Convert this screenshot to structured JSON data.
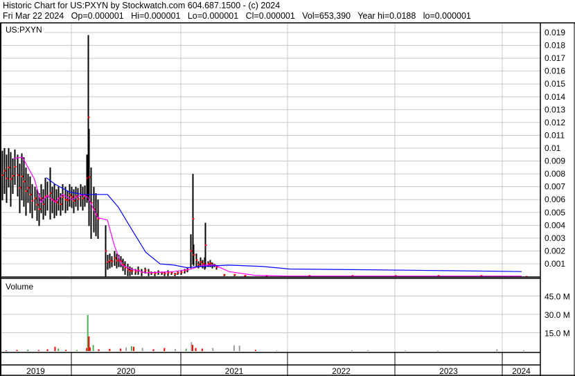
{
  "header": {
    "title": "Historic Chart for US:PXYN by Stockwatch.com 604.687.1500 - (c) 2024",
    "quote_line": "Fri Mar 22 2024   Op=0.000001   Hi=0.000001   Lo=0.000001   Cl=0.000001   Vol=653,390   Year hi=0.0188   lo=0.000001"
  },
  "chart_data": [
    {
      "type": "bar",
      "subtype": "ohlc",
      "title": "US:PXYN",
      "xlabel": "",
      "ylabel": "",
      "x_unit": "year",
      "x_ticks": [
        "2019",
        "2020",
        "2021",
        "2022",
        "2023",
        "2024"
      ],
      "y_ticks": [
        "0.001",
        "0.002",
        "0.003",
        "0.004",
        "0.005",
        "0.006",
        "0.007",
        "0.008",
        "0.009",
        "0.01",
        "0.011",
        "0.012",
        "0.013",
        "0.014",
        "0.015",
        "0.016",
        "0.017",
        "0.018",
        "0.019"
      ],
      "ylim": [
        0,
        0.0195
      ],
      "grid": true,
      "colors": {
        "bars": "#000000",
        "down_close": "#ff0000",
        "ma_short": "#ff00ff",
        "ma_long": "#0000ff",
        "grid": "#c8c8c8"
      },
      "bars_year_high_low": [
        [
          2019.34,
          0.0075,
          0.0055
        ],
        [
          2019.36,
          0.0098,
          0.006
        ],
        [
          2019.38,
          0.01,
          0.0065
        ],
        [
          2019.4,
          0.0095,
          0.0058
        ],
        [
          2019.42,
          0.01,
          0.007
        ],
        [
          2019.44,
          0.0097,
          0.0055
        ],
        [
          2019.46,
          0.0092,
          0.0065
        ],
        [
          2019.48,
          0.0099,
          0.0072
        ],
        [
          2019.5,
          0.0095,
          0.0063
        ],
        [
          2019.52,
          0.0088,
          0.005
        ],
        [
          2019.54,
          0.0096,
          0.006
        ],
        [
          2019.56,
          0.0093,
          0.0055
        ],
        [
          2019.58,
          0.0085,
          0.0048
        ],
        [
          2019.6,
          0.008,
          0.0058
        ],
        [
          2019.62,
          0.0078,
          0.005
        ],
        [
          2019.64,
          0.0072,
          0.0046
        ],
        [
          2019.66,
          0.007,
          0.0052
        ],
        [
          2019.68,
          0.0068,
          0.0044
        ],
        [
          2019.7,
          0.0065,
          0.004
        ],
        [
          2019.72,
          0.0072,
          0.005
        ],
        [
          2019.74,
          0.0068,
          0.0045
        ],
        [
          2019.76,
          0.0077,
          0.0048
        ],
        [
          2019.78,
          0.0074,
          0.0052
        ],
        [
          2019.8,
          0.0085,
          0.0045
        ],
        [
          2019.82,
          0.007,
          0.005
        ],
        [
          2019.84,
          0.0072,
          0.0046
        ],
        [
          2019.86,
          0.0068,
          0.0048
        ],
        [
          2019.88,
          0.007,
          0.0052
        ],
        [
          2019.9,
          0.0065,
          0.0048
        ],
        [
          2019.92,
          0.0072,
          0.0052
        ],
        [
          2019.94,
          0.007,
          0.005
        ],
        [
          2019.96,
          0.0067,
          0.0052
        ],
        [
          2019.98,
          0.0072,
          0.0055
        ],
        [
          2020.0,
          0.007,
          0.0054
        ],
        [
          2020.02,
          0.0068,
          0.005
        ],
        [
          2020.04,
          0.007,
          0.0055
        ],
        [
          2020.06,
          0.0069,
          0.0052
        ],
        [
          2020.08,
          0.0072,
          0.0055
        ],
        [
          2020.1,
          0.007,
          0.0052
        ],
        [
          2020.12,
          0.0071,
          0.0055
        ],
        [
          2020.14,
          0.0095,
          0.0058
        ],
        [
          2020.15,
          0.0188,
          0.006
        ],
        [
          2020.16,
          0.0115,
          0.004
        ],
        [
          2020.18,
          0.0085,
          0.003
        ],
        [
          2020.2,
          0.007,
          0.0035
        ],
        [
          2020.22,
          0.0065,
          0.0032
        ],
        [
          2020.24,
          0.006,
          0.003
        ],
        [
          2020.31,
          0.004,
          0.0
        ],
        [
          2020.33,
          0.0017,
          0.0006
        ],
        [
          2020.35,
          0.0018,
          0.0007
        ],
        [
          2020.37,
          0.0016,
          0.0008
        ],
        [
          2020.39,
          0.002,
          0.0009
        ],
        [
          2020.41,
          0.0018,
          0.0007
        ],
        [
          2020.43,
          0.0017,
          0.0008
        ],
        [
          2020.45,
          0.0016,
          0.0008
        ],
        [
          2020.47,
          0.0014,
          0.0005
        ],
        [
          2020.49,
          0.0012,
          0.0002
        ],
        [
          2020.51,
          0.001,
          0.0001
        ],
        [
          2020.53,
          0.0008,
          0.0001
        ],
        [
          2020.55,
          0.0007,
          0.0002
        ],
        [
          2020.58,
          0.0006,
          0.0002
        ],
        [
          2020.61,
          0.0008,
          0.0002
        ],
        [
          2020.64,
          0.0006,
          0.0001
        ],
        [
          2020.67,
          0.0007,
          0.0003
        ],
        [
          2020.7,
          0.0006,
          0.0001
        ],
        [
          2020.73,
          0.0004,
          0.0002
        ],
        [
          2020.76,
          0.0004,
          0.0001
        ],
        [
          2020.79,
          0.0005,
          0.0002
        ],
        [
          2020.82,
          0.0004,
          0.0002
        ],
        [
          2020.85,
          0.0004,
          0.0001
        ],
        [
          2020.88,
          0.0005,
          0.0001
        ],
        [
          2020.91,
          0.0004,
          0.0002
        ],
        [
          2020.94,
          0.0003,
          0.0001
        ],
        [
          2020.97,
          0.0004,
          0.0002
        ],
        [
          2021.0,
          0.0005,
          0.0002
        ],
        [
          2021.03,
          0.0006,
          0.0003
        ],
        [
          2021.06,
          0.0007,
          0.0004
        ],
        [
          2021.09,
          0.0033,
          0.0007
        ],
        [
          2021.11,
          0.008,
          0.001
        ],
        [
          2021.12,
          0.0025,
          0.0009
        ],
        [
          2021.14,
          0.0018,
          0.0008
        ],
        [
          2021.16,
          0.0012,
          0.0007
        ],
        [
          2021.18,
          0.0015,
          0.0008
        ],
        [
          2021.2,
          0.0013,
          0.0007
        ],
        [
          2021.22,
          0.0015,
          0.0006
        ],
        [
          2021.23,
          0.0042,
          0.0007
        ],
        [
          2021.25,
          0.0012,
          0.0008
        ],
        [
          2021.27,
          0.0013,
          0.0008
        ],
        [
          2021.29,
          0.0011,
          0.0007
        ],
        [
          2021.31,
          0.001,
          0.0008
        ],
        [
          2021.33,
          0.0009,
          0.0006
        ],
        [
          2021.4,
          0.0002,
          0.0001
        ],
        [
          2021.5,
          0.0002,
          0.0001
        ],
        [
          2021.6,
          0.0001,
          5e-05
        ],
        [
          2021.8,
          0.0001,
          5e-05
        ],
        [
          2022.2,
          0.0001,
          5e-05
        ],
        [
          2022.6,
          0.0001,
          5e-05
        ],
        [
          2023.0,
          0.0001,
          5e-05
        ],
        [
          2023.4,
          0.0001,
          5e-05
        ],
        [
          2023.8,
          0.0001,
          5e-05
        ],
        [
          2024.22,
          1e-06,
          1e-06
        ]
      ],
      "series": [
        {
          "role": "short moving average",
          "color": "#ff00ff",
          "points": [
            [
              2019.47,
              0.0092
            ],
            [
              2019.55,
              0.0093
            ],
            [
              2019.66,
              0.0076
            ],
            [
              2019.72,
              0.0058
            ],
            [
              2019.78,
              0.0063
            ],
            [
              2019.85,
              0.0058
            ],
            [
              2019.92,
              0.0064
            ],
            [
              2020.0,
              0.006
            ],
            [
              2020.1,
              0.0064
            ],
            [
              2020.15,
              0.0062
            ],
            [
              2020.24,
              0.0046
            ],
            [
              2020.33,
              0.0044
            ],
            [
              2020.39,
              0.0025
            ],
            [
              2020.46,
              0.0009
            ],
            [
              2020.55,
              0.0006
            ],
            [
              2020.68,
              0.0003
            ],
            [
              2020.94,
              0.0004
            ],
            [
              2021.1,
              0.0006
            ],
            [
              2021.21,
              0.0009
            ],
            [
              2021.32,
              0.0009
            ],
            [
              2021.45,
              0.0004
            ],
            [
              2021.7,
              0.0001
            ],
            [
              2022.02,
              5e-05
            ],
            [
              2024.18,
              5e-05
            ]
          ]
        },
        {
          "role": "long moving average",
          "color": "#0000ff",
          "points": [
            [
              2019.77,
              0.0077
            ],
            [
              2019.85,
              0.0072
            ],
            [
              2019.98,
              0.0066
            ],
            [
              2020.1,
              0.0064
            ],
            [
              2020.33,
              0.0064
            ],
            [
              2020.43,
              0.0054
            ],
            [
              2020.55,
              0.0037
            ],
            [
              2020.68,
              0.0019
            ],
            [
              2020.81,
              0.001
            ],
            [
              2020.94,
              0.0009
            ],
            [
              2021.06,
              0.0007
            ],
            [
              2021.19,
              0.0008
            ],
            [
              2021.45,
              0.0009
            ],
            [
              2021.76,
              0.0008
            ],
            [
              2022.02,
              0.0006
            ],
            [
              2023.17,
              0.0005
            ],
            [
              2024.18,
              0.0004
            ]
          ]
        }
      ]
    },
    {
      "type": "bar",
      "title": "Volume",
      "x_unit": "year",
      "y_ticks": [
        "15.0 M",
        "30.0 M",
        "45.0 M"
      ],
      "ylim": [
        0,
        55000000
      ],
      "grid": true,
      "colors": {
        "up": "#4caf50",
        "down": "#ff0000",
        "unchanged": "#a0a0a0"
      },
      "bars_year_volume_color": [
        [
          2019.4,
          600000,
          "down"
        ],
        [
          2019.5,
          900000,
          "down"
        ],
        [
          2019.6,
          1200000,
          "up"
        ],
        [
          2019.7,
          800000,
          "down"
        ],
        [
          2019.78,
          1500000,
          "down"
        ],
        [
          2019.85,
          3500000,
          "down"
        ],
        [
          2019.88,
          2000000,
          "up"
        ],
        [
          2019.95,
          1000000,
          "down"
        ],
        [
          2020.05,
          900000,
          "up"
        ],
        [
          2020.14,
          2500000,
          "down"
        ],
        [
          2020.15,
          29500000,
          "up"
        ],
        [
          2020.16,
          12000000,
          "down"
        ],
        [
          2020.17,
          3000000,
          "down"
        ],
        [
          2020.2,
          5000000,
          "up"
        ],
        [
          2020.25,
          1500000,
          "down"
        ],
        [
          2020.35,
          1800000,
          "down"
        ],
        [
          2020.45,
          2000000,
          "down"
        ],
        [
          2020.5,
          3000000,
          "gray"
        ],
        [
          2020.55,
          4000000,
          "up"
        ],
        [
          2020.57,
          3500000,
          "down"
        ],
        [
          2020.65,
          2500000,
          "gray"
        ],
        [
          2020.75,
          1500000,
          "down"
        ],
        [
          2020.85,
          2500000,
          "down"
        ],
        [
          2020.95,
          1800000,
          "gray"
        ],
        [
          2021.05,
          2000000,
          "up"
        ],
        [
          2021.1,
          7500000,
          "gray"
        ],
        [
          2021.11,
          5000000,
          "down"
        ],
        [
          2021.14,
          2500000,
          "down"
        ],
        [
          2021.2,
          2000000,
          "down"
        ],
        [
          2021.3,
          2500000,
          "gray"
        ],
        [
          2021.5,
          4800000,
          "gray"
        ],
        [
          2021.55,
          4500000,
          "gray"
        ],
        [
          2021.7,
          1000000,
          "down"
        ],
        [
          2021.9,
          600000,
          "gray"
        ],
        [
          2022.6,
          700000,
          "gray"
        ],
        [
          2022.75,
          800000,
          "gray"
        ],
        [
          2023.1,
          600000,
          "gray"
        ],
        [
          2023.4,
          500000,
          "gray"
        ],
        [
          2023.95,
          1500000,
          "gray"
        ],
        [
          2024.2,
          653390,
          "gray"
        ]
      ]
    }
  ]
}
